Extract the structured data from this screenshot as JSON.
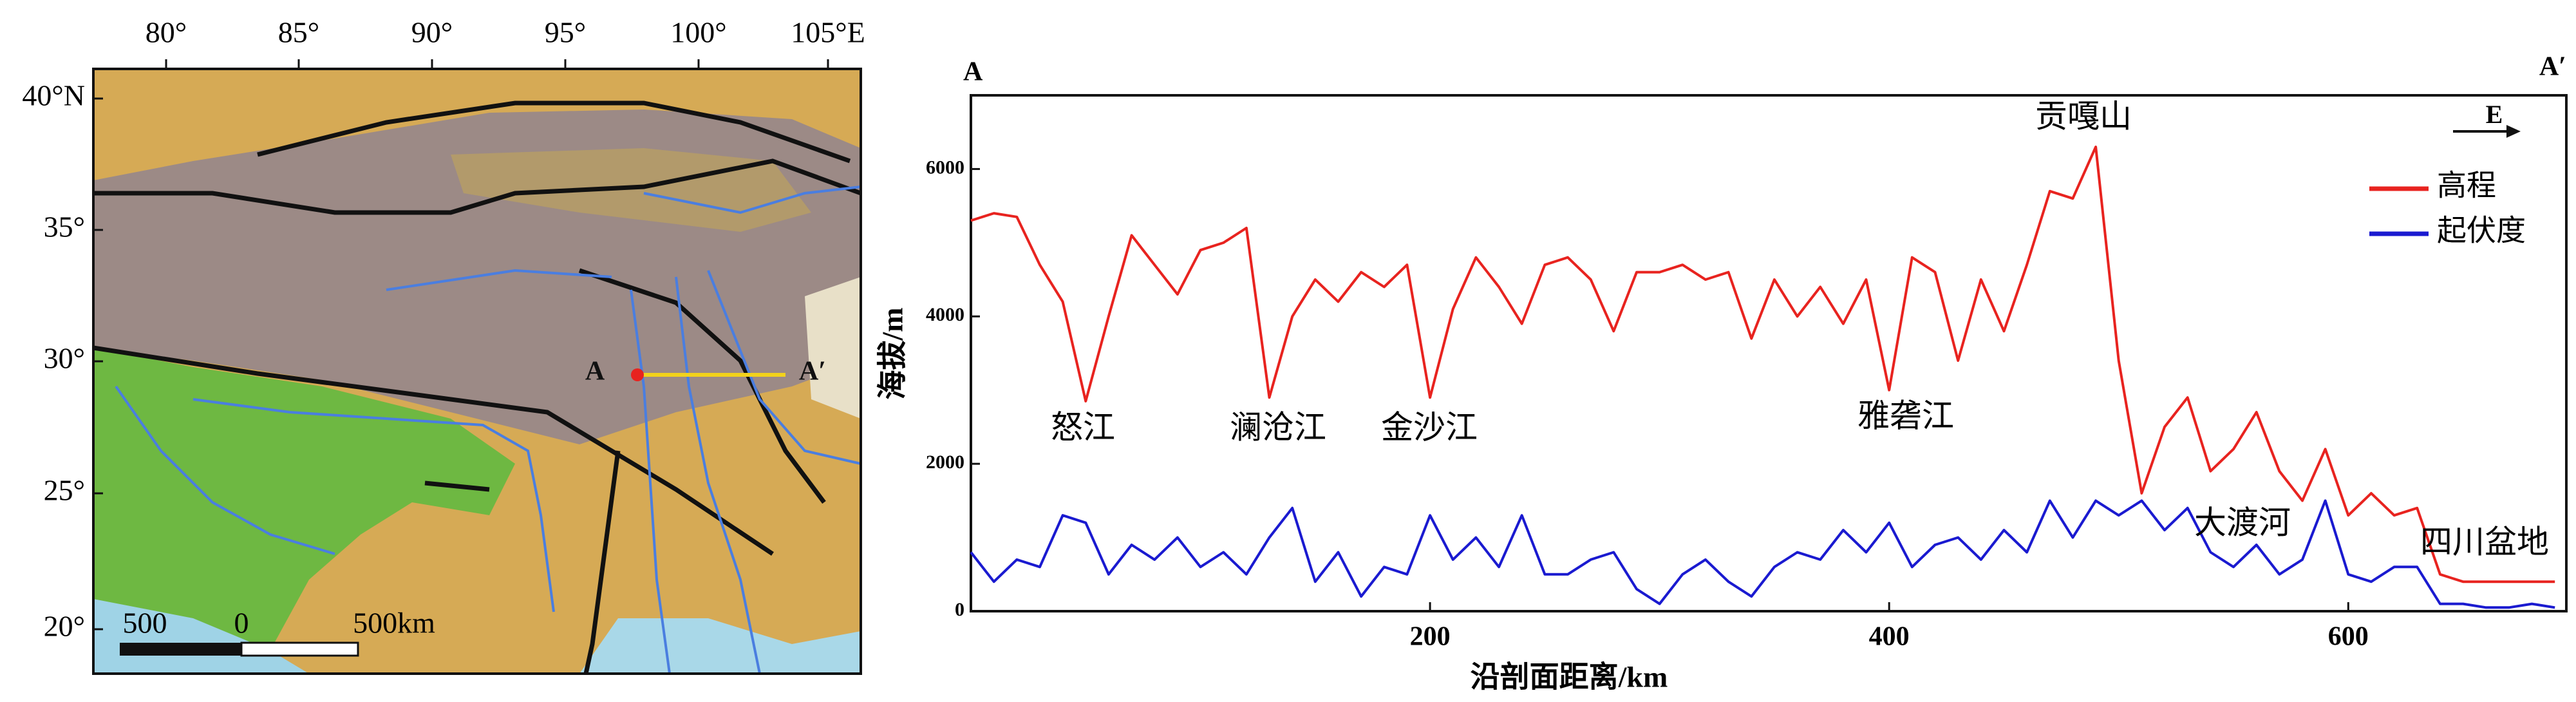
{
  "map": {
    "lon_labels": [
      "80°",
      "85°",
      "90°",
      "95°",
      "100°",
      "105°E"
    ],
    "lat_labels": [
      "40°N",
      "35°",
      "30°",
      "25°",
      "20°"
    ],
    "section_start": "A",
    "section_end": "A′",
    "scale_labels": [
      "500",
      "0",
      "500km"
    ]
  },
  "chart_data": {
    "type": "line",
    "corner_labels": [
      "A",
      "A′"
    ],
    "direction": "E",
    "annotations": [
      "贡嘎山",
      "怒江",
      "澜沧江",
      "金沙江",
      "雅砻江",
      "大渡河",
      "四川盆地"
    ],
    "xlabel": "沿剖面距离/km",
    "ylabel": "海拔/m",
    "x": [
      0,
      10,
      20,
      30,
      40,
      50,
      60,
      70,
      80,
      90,
      100,
      110,
      120,
      130,
      140,
      150,
      160,
      170,
      180,
      190,
      200,
      210,
      220,
      230,
      240,
      250,
      260,
      270,
      280,
      290,
      300,
      310,
      320,
      330,
      340,
      350,
      360,
      370,
      380,
      390,
      400,
      410,
      420,
      430,
      440,
      450,
      460,
      470,
      480,
      490,
      500,
      510,
      520,
      530,
      540,
      550,
      560,
      570,
      580,
      590,
      600,
      610,
      620,
      630,
      640,
      650,
      660,
      670,
      680,
      690
    ],
    "series": [
      {
        "name": "高程",
        "color": "#e8231f",
        "values": [
          5300,
          5400,
          5350,
          4700,
          4200,
          2850,
          4000,
          5100,
          4700,
          4300,
          4900,
          5000,
          5200,
          2900,
          4000,
          4500,
          4200,
          4600,
          4400,
          4700,
          2900,
          4100,
          4800,
          4400,
          3900,
          4700,
          4800,
          4500,
          3800,
          4600,
          4600,
          4700,
          4500,
          4600,
          3700,
          4500,
          4000,
          4400,
          3900,
          4500,
          3000,
          4800,
          4600,
          3400,
          4500,
          3800,
          4700,
          5700,
          5600,
          6300,
          3400,
          1600,
          2500,
          2900,
          1900,
          2200,
          2700,
          1900,
          1500,
          2200,
          1300,
          1600,
          1300,
          1400,
          500,
          400,
          400,
          400,
          400,
          400
        ]
      },
      {
        "name": "起伏度",
        "color": "#1a1ad0",
        "values": [
          800,
          400,
          700,
          600,
          1300,
          1200,
          500,
          900,
          700,
          1000,
          600,
          800,
          500,
          1000,
          1400,
          400,
          800,
          200,
          600,
          500,
          1300,
          700,
          1000,
          600,
          1300,
          500,
          500,
          700,
          800,
          300,
          100,
          500,
          700,
          400,
          200,
          600,
          800,
          700,
          1100,
          800,
          1200,
          600,
          900,
          1000,
          700,
          1100,
          800,
          1500,
          1000,
          1500,
          1300,
          1500,
          1100,
          1400,
          800,
          600,
          900,
          500,
          700,
          1500,
          500,
          400,
          600,
          600,
          100,
          100,
          50,
          50,
          100,
          50
        ]
      }
    ],
    "xlim": [
      0,
      695
    ],
    "ylim": [
      0,
      7000
    ],
    "xticks": [
      200,
      400,
      600
    ],
    "yticks": [
      0,
      2000,
      4000,
      6000
    ],
    "legend": "upper right"
  }
}
